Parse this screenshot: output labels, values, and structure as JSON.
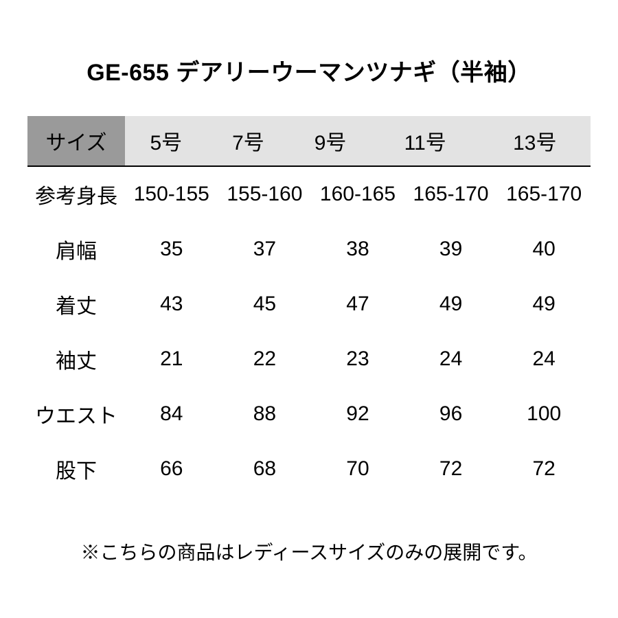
{
  "title": "GE-655 デアリーウーマンツナギ（半袖）",
  "table": {
    "header_first_bg": "#9a9a9a",
    "header_bg": "#e3e3e3",
    "text_color": "#000000",
    "title_fontsize": 34,
    "cell_fontsize": 30,
    "note_fontsize": 28,
    "size_label": "サイズ",
    "columns": [
      "5号",
      "7号",
      "9号",
      "11号",
      "13号"
    ],
    "rows": [
      {
        "label": "参考身長",
        "values": [
          "150-155",
          "155-160",
          "160-165",
          "165-170",
          "165-170"
        ]
      },
      {
        "label": "肩幅",
        "values": [
          "35",
          "37",
          "38",
          "39",
          "40"
        ]
      },
      {
        "label": "着丈",
        "values": [
          "43",
          "45",
          "47",
          "49",
          "49"
        ]
      },
      {
        "label": "袖丈",
        "values": [
          "21",
          "22",
          "23",
          "24",
          "24"
        ]
      },
      {
        "label": "ウエスト",
        "values": [
          "84",
          "88",
          "92",
          "96",
          "100"
        ]
      },
      {
        "label": "股下",
        "values": [
          "66",
          "68",
          "70",
          "72",
          "72"
        ]
      }
    ]
  },
  "note": "※こちらの商品はレディースサイズのみの展開です。"
}
